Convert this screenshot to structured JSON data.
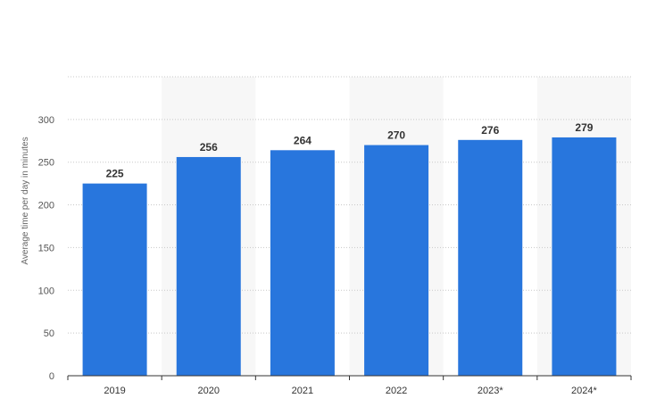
{
  "chart_data": {
    "type": "bar",
    "categories": [
      "2019",
      "2020",
      "2021",
      "2022",
      "2023*",
      "2024*"
    ],
    "values": [
      225,
      256,
      264,
      270,
      276,
      279
    ],
    "data_labels": [
      "225",
      "256",
      "264",
      "270",
      "276",
      "279"
    ],
    "title": "",
    "xlabel": "",
    "ylabel": "Average time per day in minutes",
    "ylim": [
      0,
      350
    ],
    "yticks": [
      0,
      50,
      100,
      150,
      200,
      250,
      300
    ],
    "ytick_labels": [
      "0",
      "50",
      "100",
      "150",
      "200",
      "250",
      "300"
    ],
    "grid": true,
    "bar_color": "#2876dd",
    "band_color": "#f7f7f7"
  }
}
